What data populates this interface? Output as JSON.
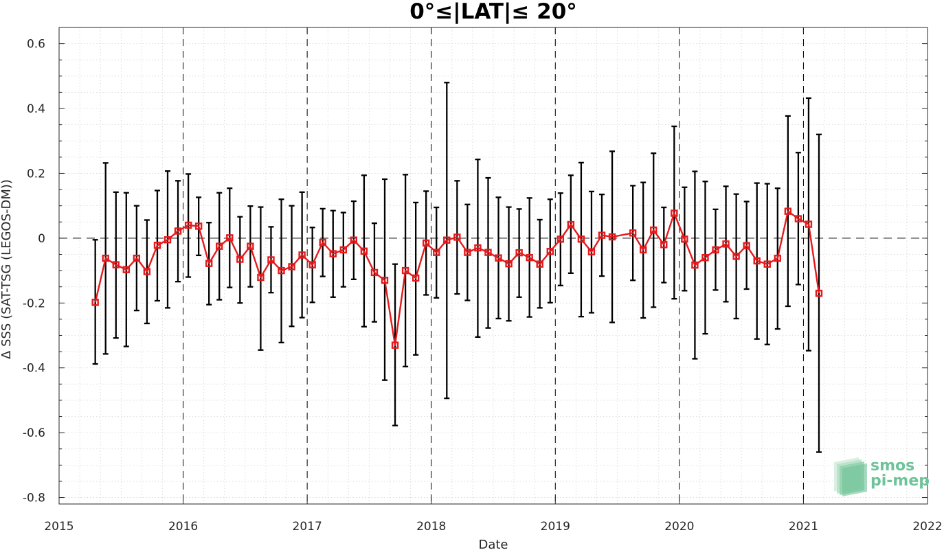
{
  "chart_data": {
    "type": "line",
    "title": "0°≤|LAT|≤ 20°",
    "xlabel": "Date",
    "ylabel": "Δ SSS (SAT-TSG (LEGOS-DM))",
    "xlim": [
      2015,
      2022
    ],
    "ylim": [
      -0.82,
      0.65
    ],
    "x_ticks": [
      "2015",
      "2016",
      "2017",
      "2018",
      "2019",
      "2020",
      "2021",
      "2022"
    ],
    "y_ticks": [
      "0.6",
      "0.4",
      "0.2",
      "0",
      "-0.2",
      "-0.4",
      "-0.6",
      "-0.8"
    ],
    "y_tick_values": [
      0.6,
      0.4,
      0.2,
      0,
      -0.2,
      -0.4,
      -0.6,
      -0.8
    ],
    "grid": true,
    "year_separators": [
      2016,
      2017,
      2018,
      2019,
      2020,
      2021
    ],
    "zero_line": 0,
    "line_color": "#e41a1c",
    "errorbar_color": "#000000",
    "series": [
      {
        "marker": "square",
        "points": [
          {
            "x": "2015-04",
            "y": -0.198,
            "lo": -0.388,
            "hi": -0.005
          },
          {
            "x": "2015-05",
            "y": -0.062,
            "lo": -0.357,
            "hi": 0.232
          },
          {
            "x": "2015-06",
            "y": -0.082,
            "lo": -0.308,
            "hi": 0.142
          },
          {
            "x": "2015-07",
            "y": -0.097,
            "lo": -0.334,
            "hi": 0.14
          },
          {
            "x": "2015-08",
            "y": -0.062,
            "lo": -0.223,
            "hi": 0.1
          },
          {
            "x": "2015-09",
            "y": -0.103,
            "lo": -0.263,
            "hi": 0.056
          },
          {
            "x": "2015-10",
            "y": -0.022,
            "lo": -0.193,
            "hi": 0.147
          },
          {
            "x": "2015-11",
            "y": -0.005,
            "lo": -0.215,
            "hi": 0.207
          },
          {
            "x": "2015-12",
            "y": 0.022,
            "lo": -0.134,
            "hi": 0.177
          },
          {
            "x": "2016-01",
            "y": 0.04,
            "lo": -0.12,
            "hi": 0.198
          },
          {
            "x": "2016-02",
            "y": 0.037,
            "lo": -0.053,
            "hi": 0.126
          },
          {
            "x": "2016-03",
            "y": -0.078,
            "lo": -0.205,
            "hi": 0.048
          },
          {
            "x": "2016-04",
            "y": -0.025,
            "lo": -0.19,
            "hi": 0.14
          },
          {
            "x": "2016-05",
            "y": 0.001,
            "lo": -0.152,
            "hi": 0.154
          },
          {
            "x": "2016-06",
            "y": -0.065,
            "lo": -0.2,
            "hi": 0.066
          },
          {
            "x": "2016-07",
            "y": -0.025,
            "lo": -0.15,
            "hi": 0.099
          },
          {
            "x": "2016-08",
            "y": -0.121,
            "lo": -0.345,
            "hi": 0.096
          },
          {
            "x": "2016-09",
            "y": -0.067,
            "lo": -0.168,
            "hi": 0.035
          },
          {
            "x": "2016-10",
            "y": -0.1,
            "lo": -0.322,
            "hi": 0.12
          },
          {
            "x": "2016-11",
            "y": -0.088,
            "lo": -0.272,
            "hi": 0.1
          },
          {
            "x": "2016-12",
            "y": -0.052,
            "lo": -0.245,
            "hi": 0.142
          },
          {
            "x": "2017-01",
            "y": -0.082,
            "lo": -0.198,
            "hi": 0.033
          },
          {
            "x": "2017-02",
            "y": -0.013,
            "lo": -0.118,
            "hi": 0.091
          },
          {
            "x": "2017-03",
            "y": -0.048,
            "lo": -0.182,
            "hi": 0.085
          },
          {
            "x": "2017-04",
            "y": -0.036,
            "lo": -0.15,
            "hi": 0.079
          },
          {
            "x": "2017-05",
            "y": -0.006,
            "lo": -0.127,
            "hi": 0.114
          },
          {
            "x": "2017-06",
            "y": -0.04,
            "lo": -0.273,
            "hi": 0.194
          },
          {
            "x": "2017-07",
            "y": -0.106,
            "lo": -0.258,
            "hi": 0.046
          },
          {
            "x": "2017-08",
            "y": -0.13,
            "lo": -0.438,
            "hi": 0.182
          },
          {
            "x": "2017-09",
            "y": -0.33,
            "lo": -0.578,
            "hi": -0.08
          },
          {
            "x": "2017-10",
            "y": -0.1,
            "lo": -0.396,
            "hi": 0.196
          },
          {
            "x": "2017-11",
            "y": -0.123,
            "lo": -0.36,
            "hi": 0.11
          },
          {
            "x": "2017-12",
            "y": -0.015,
            "lo": -0.175,
            "hi": 0.145
          },
          {
            "x": "2018-01",
            "y": -0.044,
            "lo": -0.184,
            "hi": 0.095
          },
          {
            "x": "2018-02",
            "y": -0.006,
            "lo": -0.494,
            "hi": 0.48
          },
          {
            "x": "2018-03",
            "y": 0.003,
            "lo": -0.172,
            "hi": 0.177
          },
          {
            "x": "2018-04",
            "y": -0.044,
            "lo": -0.192,
            "hi": 0.104
          },
          {
            "x": "2018-05",
            "y": -0.03,
            "lo": -0.305,
            "hi": 0.243
          },
          {
            "x": "2018-06",
            "y": -0.044,
            "lo": -0.277,
            "hi": 0.186
          },
          {
            "x": "2018-07",
            "y": -0.061,
            "lo": -0.248,
            "hi": 0.126
          },
          {
            "x": "2018-08",
            "y": -0.079,
            "lo": -0.255,
            "hi": 0.096
          },
          {
            "x": "2018-09",
            "y": -0.045,
            "lo": -0.182,
            "hi": 0.09
          },
          {
            "x": "2018-10",
            "y": -0.06,
            "lo": -0.243,
            "hi": 0.124
          },
          {
            "x": "2018-11",
            "y": -0.08,
            "lo": -0.215,
            "hi": 0.057
          },
          {
            "x": "2018-12",
            "y": -0.041,
            "lo": -0.199,
            "hi": 0.12
          },
          {
            "x": "2019-01",
            "y": -0.003,
            "lo": -0.146,
            "hi": 0.139
          },
          {
            "x": "2019-02",
            "y": 0.042,
            "lo": -0.108,
            "hi": 0.194
          },
          {
            "x": "2019-03",
            "y": -0.003,
            "lo": -0.242,
            "hi": 0.233
          },
          {
            "x": "2019-04",
            "y": -0.042,
            "lo": -0.23,
            "hi": 0.144
          },
          {
            "x": "2019-05",
            "y": 0.009,
            "lo": -0.117,
            "hi": 0.135
          },
          {
            "x": "2019-06",
            "y": 0.004,
            "lo": -0.26,
            "hi": 0.268
          },
          {
            "x": "2019-08",
            "y": 0.016,
            "lo": -0.13,
            "hi": 0.162
          },
          {
            "x": "2019-09",
            "y": -0.036,
            "lo": -0.246,
            "hi": 0.172
          },
          {
            "x": "2019-10",
            "y": 0.025,
            "lo": -0.213,
            "hi": 0.262
          },
          {
            "x": "2019-11",
            "y": -0.02,
            "lo": -0.137,
            "hi": 0.095
          },
          {
            "x": "2019-12",
            "y": 0.077,
            "lo": -0.187,
            "hi": 0.345
          },
          {
            "x": "2020-01",
            "y": -0.003,
            "lo": -0.162,
            "hi": 0.157
          },
          {
            "x": "2020-02",
            "y": -0.083,
            "lo": -0.372,
            "hi": 0.206
          },
          {
            "x": "2020-03",
            "y": -0.06,
            "lo": -0.295,
            "hi": 0.175
          },
          {
            "x": "2020-04",
            "y": -0.036,
            "lo": -0.16,
            "hi": 0.089
          },
          {
            "x": "2020-05",
            "y": -0.018,
            "lo": -0.196,
            "hi": 0.16
          },
          {
            "x": "2020-06",
            "y": -0.056,
            "lo": -0.248,
            "hi": 0.136
          },
          {
            "x": "2020-07",
            "y": -0.023,
            "lo": -0.157,
            "hi": 0.113
          },
          {
            "x": "2020-08",
            "y": -0.07,
            "lo": -0.311,
            "hi": 0.17
          },
          {
            "x": "2020-09",
            "y": -0.08,
            "lo": -0.328,
            "hi": 0.168
          },
          {
            "x": "2020-10",
            "y": -0.062,
            "lo": -0.28,
            "hi": 0.154
          },
          {
            "x": "2020-11",
            "y": 0.083,
            "lo": -0.21,
            "hi": 0.377
          },
          {
            "x": "2020-12",
            "y": 0.06,
            "lo": -0.143,
            "hi": 0.264
          },
          {
            "x": "2021-01",
            "y": 0.043,
            "lo": -0.347,
            "hi": 0.432
          },
          {
            "x": "2021-02",
            "y": -0.17,
            "lo": -0.66,
            "hi": 0.32
          }
        ]
      }
    ]
  },
  "logo": {
    "line1": "smos",
    "line2": "pi-mep",
    "color": "#6fc39a"
  }
}
